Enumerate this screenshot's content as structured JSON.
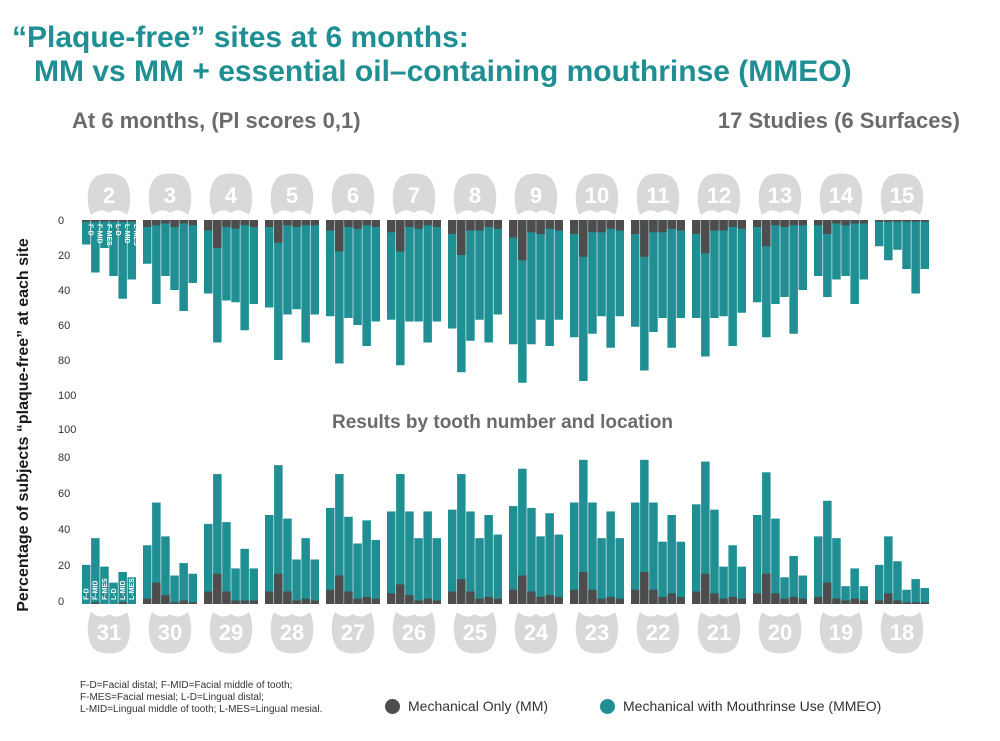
{
  "title_line1": "“Plaque-free” sites at 6 months:",
  "title_line2": "MM vs MM + essential oil–containing mouthrinse (MMEO)",
  "subtitle_left": "At 6 months, (Pl scores 0,1)",
  "subtitle_right": "17 Studies (6 Surfaces)",
  "middle_label": "Results by tooth number and location",
  "footnote_lines": [
    "F-D=Facial distal; F-MID=Facial middle of tooth;",
    "F-MES=Facial mesial; L-D=Lingual distal;",
    "L-MID=Lingual middle of tooth; L-MES=Lingual mesial."
  ],
  "colors": {
    "mm": "#4d4d4d",
    "mmeo": "#1f8f93",
    "tooth": "#d9d9d9",
    "title": "#1f8f93"
  },
  "chart_data": {
    "type": "bar",
    "title": "“Plaque-free” sites at 6 months: MM vs MM + essential oil–containing mouthrinse (MMEO)",
    "ylabel": "Percentage of subjects “plaque-free” at each site",
    "ylim": [
      0,
      100
    ],
    "y_ticks_upper": [
      "0",
      "20",
      "40",
      "60",
      "80",
      "100"
    ],
    "y_ticks_lower": [
      "0",
      "20",
      "40",
      "60",
      "80",
      "100"
    ],
    "sites": [
      "F-D",
      "F-MID",
      "F-MES",
      "L-D",
      "L-MID",
      "L-MES"
    ],
    "legend": [
      "Mechanical Only (MM)",
      "Mechanical with Mouthrinse Use (MMEO)"
    ],
    "upper_arch": {
      "teeth": [
        "2",
        "3",
        "4",
        "5",
        "6",
        "7",
        "8",
        "9",
        "10",
        "11",
        "12",
        "13",
        "14",
        "15"
      ],
      "mm": [
        [
          1,
          1,
          1,
          1,
          1,
          1
        ],
        [
          4,
          3,
          2,
          4,
          2,
          3
        ],
        [
          6,
          16,
          4,
          5,
          3,
          4
        ],
        [
          4,
          13,
          3,
          4,
          3,
          3
        ],
        [
          6,
          18,
          4,
          5,
          3,
          4
        ],
        [
          7,
          18,
          4,
          5,
          3,
          4
        ],
        [
          8,
          20,
          6,
          6,
          4,
          5
        ],
        [
          10,
          23,
          7,
          8,
          5,
          6
        ],
        [
          8,
          21,
          7,
          7,
          5,
          6
        ],
        [
          8,
          21,
          7,
          7,
          5,
          6
        ],
        [
          8,
          19,
          6,
          6,
          4,
          5
        ],
        [
          4,
          15,
          3,
          4,
          3,
          3
        ],
        [
          3,
          8,
          2,
          3,
          2,
          2
        ],
        [
          1,
          1,
          1,
          1,
          1,
          1
        ]
      ],
      "mmeo": [
        [
          14,
          30,
          16,
          32,
          45,
          34
        ],
        [
          25,
          48,
          32,
          40,
          52,
          36
        ],
        [
          42,
          70,
          46,
          47,
          63,
          48
        ],
        [
          50,
          80,
          54,
          51,
          70,
          54
        ],
        [
          55,
          82,
          56,
          60,
          72,
          58
        ],
        [
          57,
          83,
          58,
          58,
          70,
          58
        ],
        [
          62,
          87,
          69,
          57,
          70,
          54
        ],
        [
          71,
          93,
          71,
          57,
          72,
          57
        ],
        [
          67,
          92,
          65,
          55,
          73,
          55
        ],
        [
          61,
          86,
          64,
          56,
          73,
          56
        ],
        [
          56,
          78,
          56,
          55,
          72,
          53
        ],
        [
          47,
          67,
          48,
          44,
          65,
          40
        ],
        [
          32,
          44,
          34,
          32,
          48,
          34
        ],
        [
          15,
          23,
          17,
          28,
          42,
          28
        ]
      ]
    },
    "lower_arch": {
      "teeth": [
        "31",
        "30",
        "29",
        "28",
        "27",
        "26",
        "25",
        "24",
        "23",
        "22",
        "21",
        "20",
        "19",
        "18"
      ],
      "mm": [
        [
          0,
          1,
          0,
          0,
          1,
          0
        ],
        [
          3,
          12,
          5,
          1,
          2,
          1
        ],
        [
          7,
          17,
          7,
          2,
          2,
          2
        ],
        [
          7,
          17,
          7,
          2,
          3,
          2
        ],
        [
          8,
          16,
          7,
          3,
          4,
          3
        ],
        [
          6,
          11,
          5,
          2,
          3,
          2
        ],
        [
          7,
          14,
          7,
          3,
          4,
          3
        ],
        [
          8,
          16,
          7,
          4,
          5,
          4
        ],
        [
          8,
          18,
          8,
          3,
          4,
          3
        ],
        [
          8,
          18,
          8,
          4,
          6,
          4
        ],
        [
          7,
          17,
          6,
          3,
          4,
          3
        ],
        [
          6,
          17,
          6,
          3,
          4,
          3
        ],
        [
          4,
          12,
          3,
          2,
          3,
          2
        ],
        [
          2,
          6,
          2,
          1,
          1,
          1
        ]
      ],
      "mmeo": [
        [
          22,
          37,
          21,
          12,
          18,
          15
        ],
        [
          33,
          57,
          38,
          16,
          23,
          17
        ],
        [
          45,
          73,
          46,
          20,
          31,
          20
        ],
        [
          50,
          78,
          48,
          25,
          37,
          25
        ],
        [
          54,
          73,
          49,
          34,
          47,
          36
        ],
        [
          52,
          73,
          52,
          37,
          52,
          37
        ],
        [
          53,
          73,
          52,
          37,
          50,
          39
        ],
        [
          55,
          76,
          54,
          38,
          51,
          39
        ],
        [
          57,
          81,
          57,
          37,
          52,
          37
        ],
        [
          57,
          81,
          57,
          35,
          50,
          35
        ],
        [
          56,
          80,
          53,
          21,
          33,
          21
        ],
        [
          50,
          74,
          48,
          15,
          27,
          16
        ],
        [
          38,
          58,
          37,
          10,
          20,
          10
        ],
        [
          22,
          38,
          24,
          8,
          14,
          9
        ]
      ]
    }
  }
}
